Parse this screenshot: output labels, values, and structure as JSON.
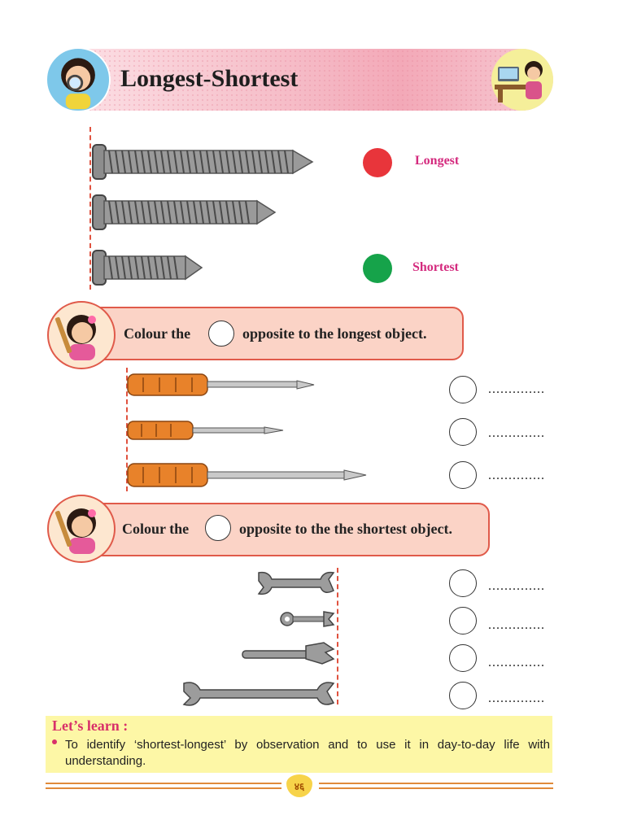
{
  "header": {
    "title": "Longest-Shortest"
  },
  "legend": {
    "longest_label": "Longest",
    "shortest_label": "Shortest",
    "longest_color": "#e8353b",
    "shortest_color": "#16a34a"
  },
  "section1": {
    "instruction_before": "Colour the",
    "instruction_after": "opposite to the longest object.",
    "answers": [
      "..............",
      "..............",
      ".............."
    ]
  },
  "section2": {
    "instruction_before": "Colour the",
    "instruction_after": "opposite to the the shortest object.",
    "answers": [
      "..............",
      "..............",
      "..............",
      ".............."
    ]
  },
  "lets_learn": {
    "title": "Let’s learn :",
    "text": "To identify ‘shortest-longest’ by observation and to use it in day-to-day life with understanding."
  },
  "footer": {
    "page_number": "४६"
  },
  "colors": {
    "accent": "#e05a4a",
    "label_pink": "#d42a7e",
    "learn_bg": "#fdf7a6"
  }
}
